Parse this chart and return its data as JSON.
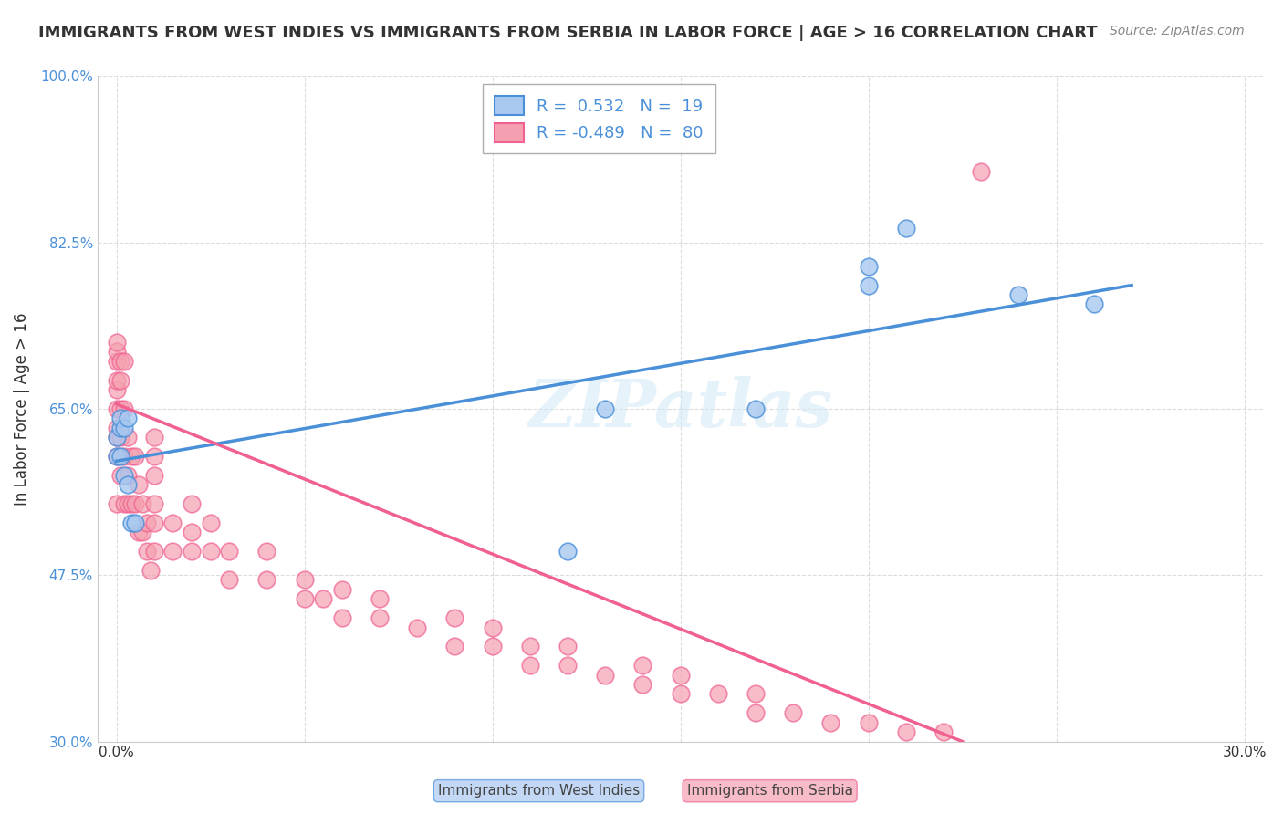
{
  "title": "IMMIGRANTS FROM WEST INDIES VS IMMIGRANTS FROM SERBIA IN LABOR FORCE | AGE > 16 CORRELATION CHART",
  "source": "Source: ZipAtlas.com",
  "ylabel": "In Labor Force | Age > 16",
  "xlabel": "",
  "xlim": [
    0.0,
    0.3
  ],
  "ylim": [
    0.3,
    1.0
  ],
  "xtick_labels": [
    "0.0%",
    "",
    "",
    "",
    "",
    "",
    "30.0%"
  ],
  "ytick_labels": [
    "30.0%",
    "47.5%",
    "65.0%",
    "82.5%",
    "100.0%"
  ],
  "ytick_values": [
    0.3,
    0.475,
    0.65,
    0.825,
    1.0
  ],
  "xtick_values": [
    0.0,
    0.05,
    0.1,
    0.15,
    0.2,
    0.25,
    0.3
  ],
  "legend_R1": "0.532",
  "legend_N1": "19",
  "legend_R2": "-0.489",
  "legend_N2": "80",
  "blue_color": "#a8c8f0",
  "pink_color": "#f5a0b0",
  "line_blue": "#4a90d9",
  "line_pink": "#f06090",
  "watermark": "ZIPatlas",
  "west_indies_x": [
    0.0,
    0.0,
    0.001,
    0.001,
    0.001,
    0.002,
    0.002,
    0.003,
    0.003,
    0.004,
    0.005,
    0.12,
    0.13,
    0.17,
    0.2,
    0.2,
    0.21,
    0.24,
    0.26
  ],
  "west_indies_y": [
    0.6,
    0.62,
    0.63,
    0.64,
    0.6,
    0.58,
    0.63,
    0.64,
    0.57,
    0.53,
    0.53,
    0.5,
    0.65,
    0.65,
    0.78,
    0.8,
    0.84,
    0.77,
    0.76
  ],
  "serbia_x": [
    0.0,
    0.0,
    0.0,
    0.0,
    0.0,
    0.0,
    0.0,
    0.0,
    0.0,
    0.0,
    0.001,
    0.001,
    0.001,
    0.001,
    0.001,
    0.002,
    0.002,
    0.002,
    0.002,
    0.003,
    0.003,
    0.003,
    0.004,
    0.004,
    0.005,
    0.005,
    0.006,
    0.006,
    0.007,
    0.007,
    0.008,
    0.008,
    0.009,
    0.01,
    0.01,
    0.01,
    0.01,
    0.01,
    0.01,
    0.015,
    0.015,
    0.02,
    0.02,
    0.02,
    0.025,
    0.025,
    0.03,
    0.03,
    0.04,
    0.04,
    0.05,
    0.05,
    0.055,
    0.06,
    0.06,
    0.07,
    0.07,
    0.08,
    0.09,
    0.09,
    0.1,
    0.1,
    0.11,
    0.11,
    0.12,
    0.12,
    0.13,
    0.14,
    0.14,
    0.15,
    0.15,
    0.16,
    0.17,
    0.17,
    0.18,
    0.19,
    0.2,
    0.21,
    0.22,
    0.23
  ],
  "serbia_y": [
    0.55,
    0.6,
    0.62,
    0.63,
    0.65,
    0.67,
    0.68,
    0.7,
    0.71,
    0.72,
    0.58,
    0.62,
    0.65,
    0.68,
    0.7,
    0.55,
    0.6,
    0.65,
    0.7,
    0.55,
    0.58,
    0.62,
    0.55,
    0.6,
    0.55,
    0.6,
    0.52,
    0.57,
    0.52,
    0.55,
    0.5,
    0.53,
    0.48,
    0.55,
    0.58,
    0.6,
    0.62,
    0.5,
    0.53,
    0.5,
    0.53,
    0.5,
    0.52,
    0.55,
    0.5,
    0.53,
    0.47,
    0.5,
    0.47,
    0.5,
    0.45,
    0.47,
    0.45,
    0.43,
    0.46,
    0.43,
    0.45,
    0.42,
    0.4,
    0.43,
    0.4,
    0.42,
    0.38,
    0.4,
    0.38,
    0.4,
    0.37,
    0.36,
    0.38,
    0.35,
    0.37,
    0.35,
    0.33,
    0.35,
    0.33,
    0.32,
    0.32,
    0.31,
    0.31,
    0.9
  ]
}
